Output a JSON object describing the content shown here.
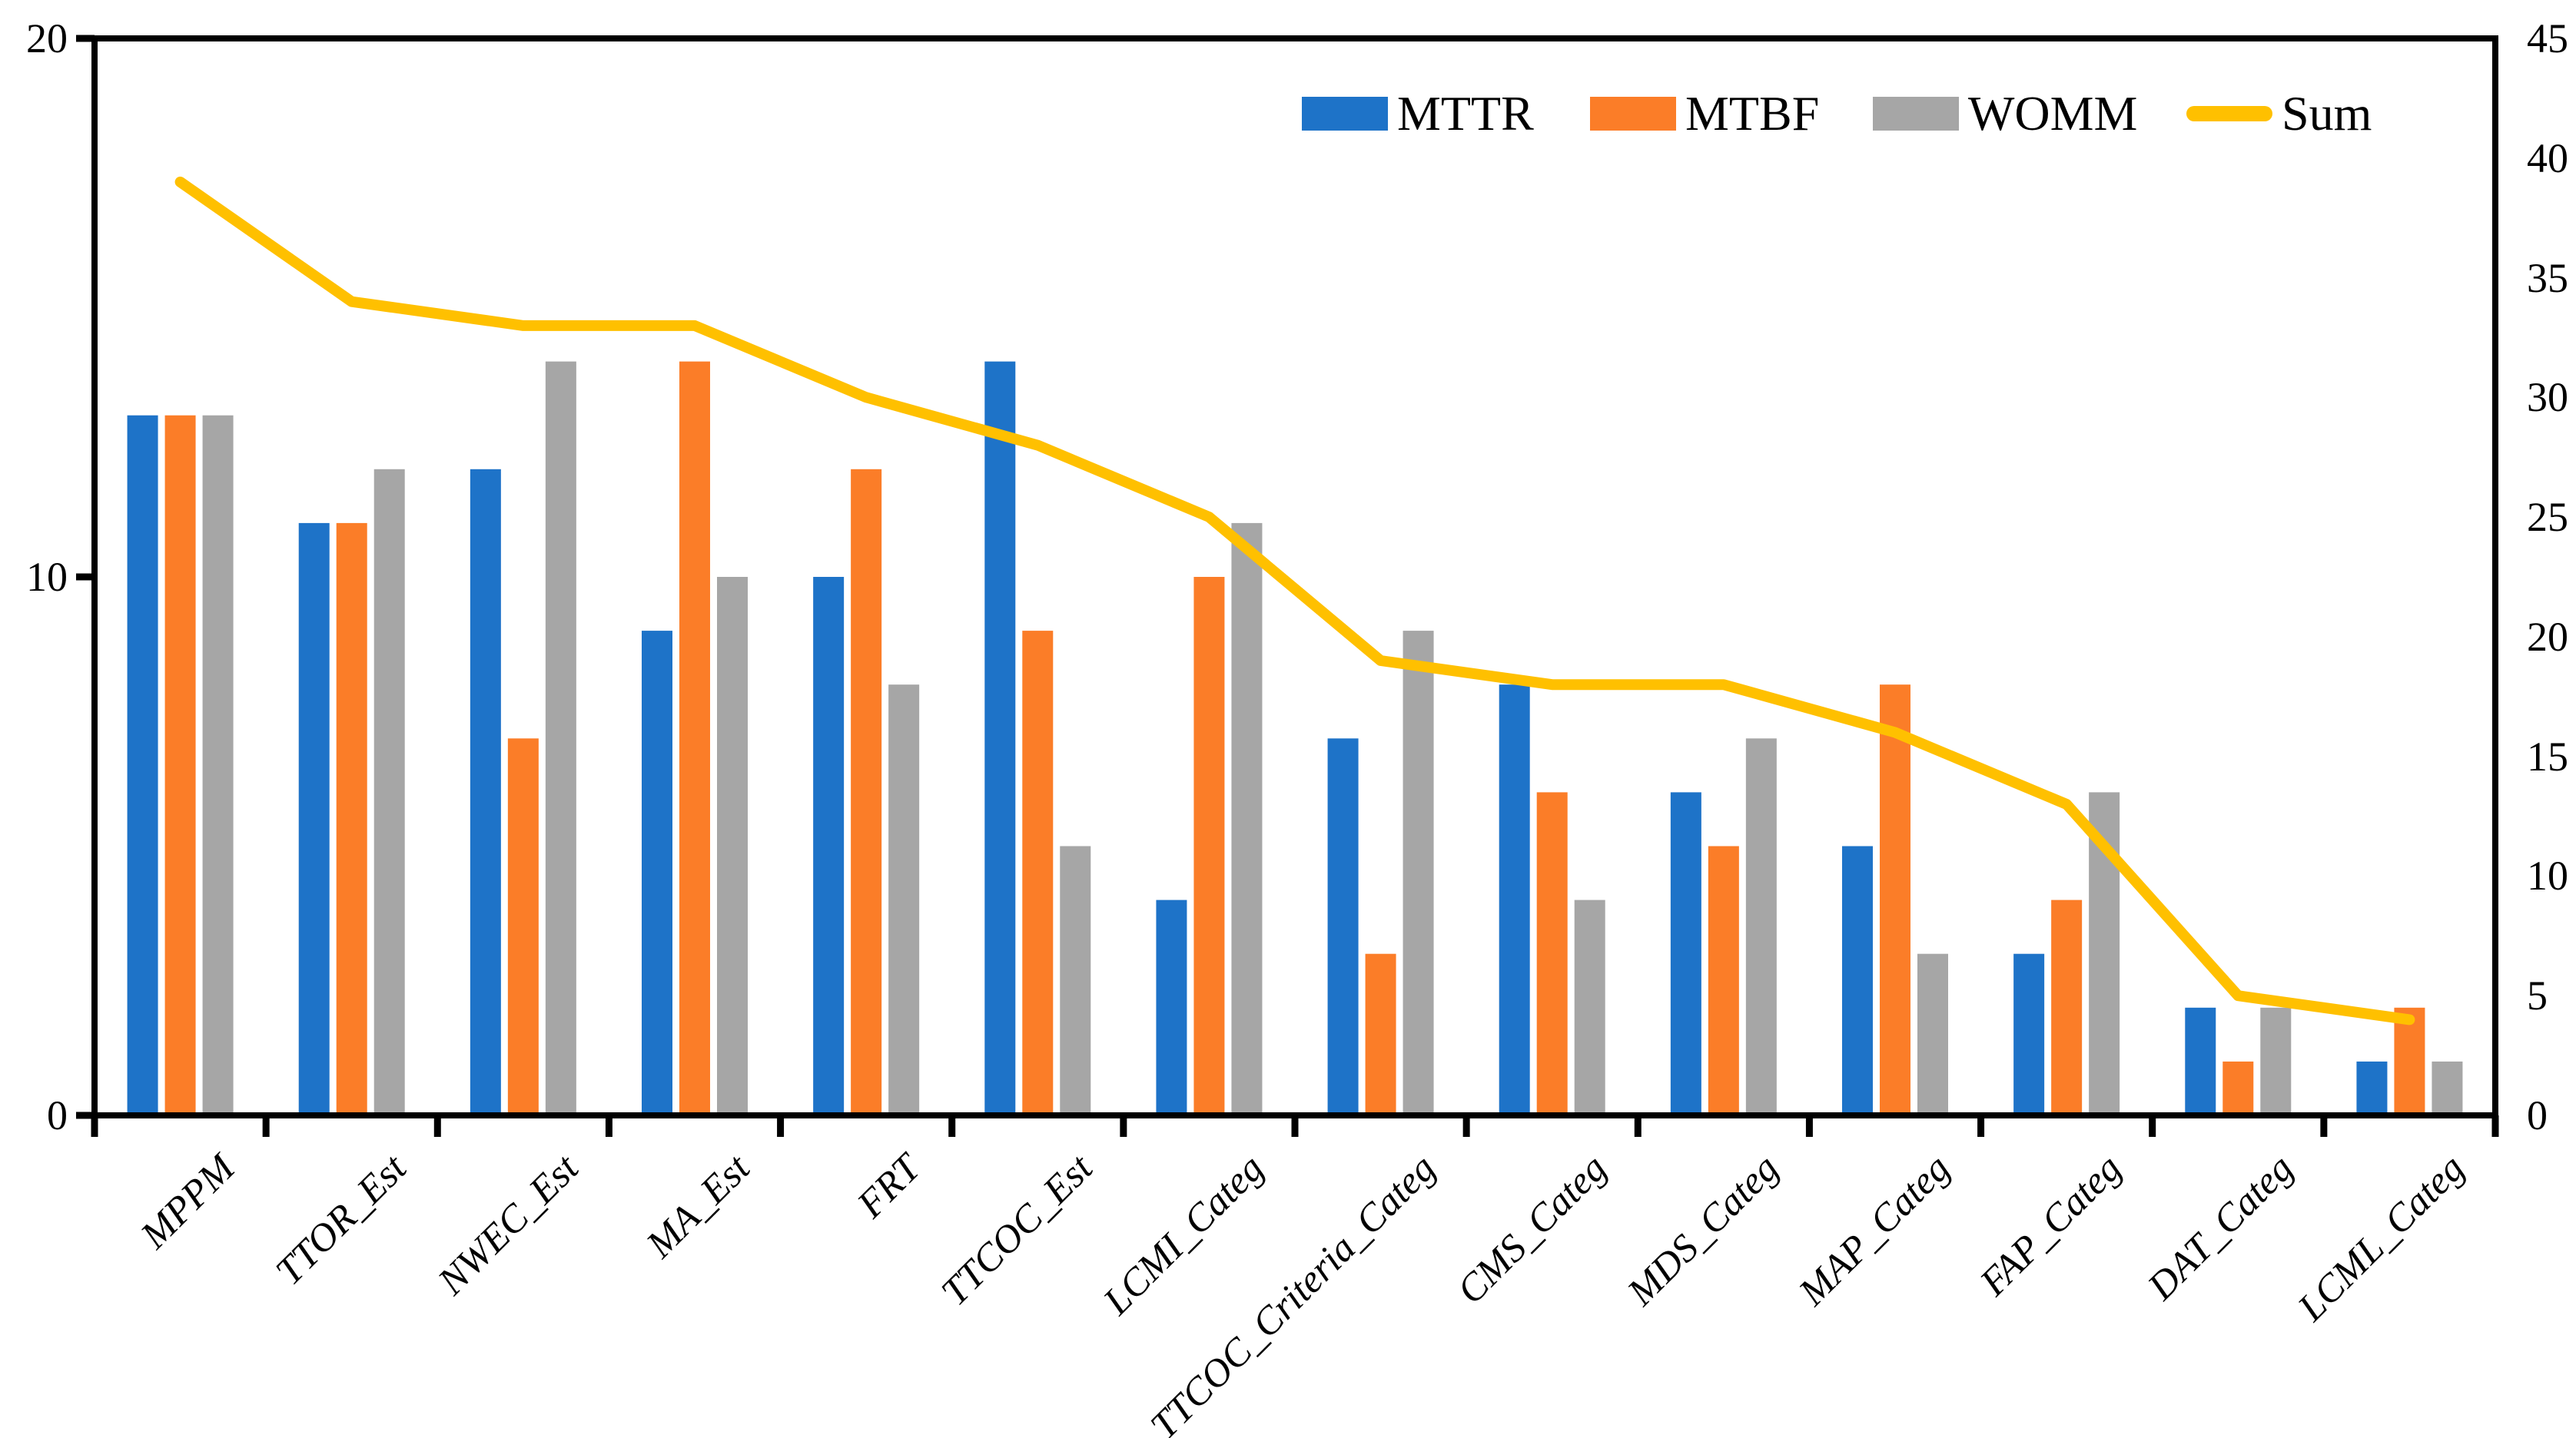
{
  "figure": {
    "background": "#ffffff",
    "frame_color": "#000000"
  },
  "legend": {
    "position": "top-inside-right",
    "items": [
      {
        "label": "MTTR",
        "color": "#1E73C8",
        "swatch": "bar"
      },
      {
        "label": "MTBF",
        "color": "#FB7D28",
        "swatch": "bar"
      },
      {
        "label": "WOMM",
        "color": "#A6A6A6",
        "swatch": "bar"
      },
      {
        "label": "Sum",
        "color": "#FFC000",
        "swatch": "line"
      }
    ]
  },
  "chart_data": {
    "type": "bar+line",
    "title": "",
    "xlabel": "",
    "ylabel": "",
    "grid": false,
    "legend_position": "top-inside-right",
    "categories": [
      "MPPM",
      "TTOR_Est",
      "NWEC_Est",
      "MA_Est",
      "FRT",
      "TTCOC_Est",
      "LCMI_Categ",
      "TTCOC_Criteria_Categ",
      "CMS_Categ",
      "MDS_Categ",
      "MAP_Categ",
      "FAP_Categ",
      "DAT_Categ",
      "LCML_Categ"
    ],
    "series": [
      {
        "name": "MTTR",
        "type": "bar",
        "axis": "left",
        "color": "#1E73C8",
        "values": [
          13,
          11,
          12,
          9,
          10,
          14,
          4,
          7,
          8,
          6,
          5,
          3,
          2,
          1
        ]
      },
      {
        "name": "MTBF",
        "type": "bar",
        "axis": "left",
        "color": "#FB7D28",
        "values": [
          13,
          11,
          7,
          14,
          12,
          9,
          10,
          3,
          6,
          5,
          8,
          4,
          1,
          2
        ]
      },
      {
        "name": "WOMM",
        "type": "bar",
        "axis": "left",
        "color": "#A6A6A6",
        "values": [
          13,
          12,
          14,
          10,
          8,
          5,
          11,
          9,
          4,
          7,
          3,
          6,
          2,
          1
        ]
      },
      {
        "name": "Sum",
        "type": "line",
        "axis": "right",
        "color": "#FFC000",
        "values": [
          39,
          34,
          33,
          33,
          30,
          28,
          25,
          19,
          18,
          18,
          16,
          13,
          5,
          4
        ]
      }
    ],
    "left_axis": {
      "min": 0,
      "max": 20,
      "ticks": [
        0,
        10,
        20
      ]
    },
    "right_axis": {
      "min": 0,
      "max": 45,
      "ticks": [
        0,
        5,
        10,
        15,
        20,
        25,
        30,
        35,
        40,
        45
      ]
    }
  }
}
